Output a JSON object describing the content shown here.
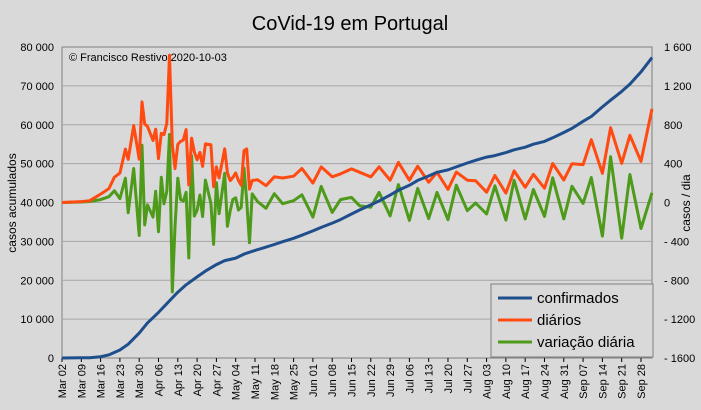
{
  "chart_data": {
    "type": "line",
    "title": "CoVid-19 em Portugal",
    "copyright": "© Francisco Restivo 2020-10-03",
    "ylabel_left": "casos  acumulados",
    "ylabel_right": "casos / dia",
    "ylim_left": [
      0,
      80000
    ],
    "ylim_right": [
      -1600,
      1600
    ],
    "yticks_left": [
      "0",
      "10 000",
      "20 000",
      "30 000",
      "40 000",
      "50 000",
      "60 000",
      "70 000",
      "80 000"
    ],
    "yticks_right": [
      "- 1600",
      "- 1200",
      "- 800",
      "- 400",
      "0",
      "400",
      "800",
      "1 200",
      "1 600"
    ],
    "x_start": "2020-03-02",
    "x_end": "2020-10-02",
    "xticks": [
      "Mar 02",
      "Mar 09",
      "Mar 16",
      "Mar 23",
      "Mar 30",
      "Apr 06",
      "Apr 13",
      "Apr 20",
      "Apr 27",
      "May 04",
      "May 11",
      "May 18",
      "May 25",
      "Jun 01",
      "Jun 08",
      "Jun 15",
      "Jun 22",
      "Jun 29",
      "Jul 06",
      "Jul 13",
      "Jul 20",
      "Jul 27",
      "Aug 03",
      "Aug 10",
      "Aug 17",
      "Aug 24",
      "Aug 31",
      "Sep 07",
      "Sep 14",
      "Sep 21",
      "Sep 28"
    ],
    "legend_position": "bottom-right",
    "grid": true,
    "colors": {
      "confirmados": "#1f4e8c",
      "diarios": "#ff4a12",
      "variacao": "#4e9a1a",
      "background": "#d9d9d9",
      "grid": "#a6a6a6"
    },
    "series": [
      {
        "name": "confirmados",
        "axis": "left",
        "points": [
          [
            "2020-03-02",
            2
          ],
          [
            "2020-03-09",
            39
          ],
          [
            "2020-03-12",
            78
          ],
          [
            "2020-03-16",
            331
          ],
          [
            "2020-03-19",
            785
          ],
          [
            "2020-03-23",
            2060
          ],
          [
            "2020-03-26",
            3544
          ],
          [
            "2020-03-30",
            6408
          ],
          [
            "2020-04-02",
            9034
          ],
          [
            "2020-04-06",
            11730
          ],
          [
            "2020-04-09",
            13956
          ],
          [
            "2020-04-11",
            15472
          ],
          [
            "2020-04-13",
            16934
          ],
          [
            "2020-04-16",
            18841
          ],
          [
            "2020-04-20",
            20863
          ],
          [
            "2020-04-23",
            22353
          ],
          [
            "2020-04-27",
            24027
          ],
          [
            "2020-04-30",
            25045
          ],
          [
            "2020-05-04",
            25702
          ],
          [
            "2020-05-07",
            26715
          ],
          [
            "2020-05-11",
            27679
          ],
          [
            "2020-05-14",
            28319
          ],
          [
            "2020-05-18",
            29209
          ],
          [
            "2020-05-21",
            29912
          ],
          [
            "2020-05-25",
            30788
          ],
          [
            "2020-05-28",
            31596
          ],
          [
            "2020-06-01",
            32700
          ],
          [
            "2020-06-04",
            33592
          ],
          [
            "2020-06-08",
            34693
          ],
          [
            "2020-06-11",
            35600
          ],
          [
            "2020-06-15",
            37036
          ],
          [
            "2020-06-18",
            38089
          ],
          [
            "2020-06-22",
            39392
          ],
          [
            "2020-06-25",
            40415
          ],
          [
            "2020-06-29",
            41912
          ],
          [
            "2020-07-02",
            43156
          ],
          [
            "2020-07-06",
            44416
          ],
          [
            "2020-07-09",
            45679
          ],
          [
            "2020-07-13",
            46818
          ],
          [
            "2020-07-16",
            47765
          ],
          [
            "2020-07-20",
            48390
          ],
          [
            "2020-07-23",
            49150
          ],
          [
            "2020-07-27",
            50164
          ],
          [
            "2020-07-30",
            50868
          ],
          [
            "2020-08-03",
            51681
          ],
          [
            "2020-08-06",
            52061
          ],
          [
            "2020-08-10",
            52825
          ],
          [
            "2020-08-13",
            53548
          ],
          [
            "2020-08-17",
            54234
          ],
          [
            "2020-08-20",
            54992
          ],
          [
            "2020-08-24",
            55720
          ],
          [
            "2020-08-27",
            56654
          ],
          [
            "2020-08-31",
            58012
          ],
          [
            "2020-09-03",
            59051
          ],
          [
            "2020-09-07",
            60895
          ],
          [
            "2020-09-10",
            62126
          ],
          [
            "2020-09-14",
            64596
          ],
          [
            "2020-09-17",
            66309
          ],
          [
            "2020-09-21",
            68577
          ],
          [
            "2020-09-24",
            70465
          ],
          [
            "2020-09-28",
            73604
          ],
          [
            "2020-10-02",
            77284
          ]
        ]
      },
      {
        "name": "diários",
        "axis": "right",
        "points": [
          [
            "2020-03-02",
            0
          ],
          [
            "2020-03-09",
            9
          ],
          [
            "2020-03-12",
            19
          ],
          [
            "2020-03-16",
            86
          ],
          [
            "2020-03-19",
            143
          ],
          [
            "2020-03-21",
            260
          ],
          [
            "2020-03-23",
            302
          ],
          [
            "2020-03-25",
            549
          ],
          [
            "2020-03-26",
            443
          ],
          [
            "2020-03-28",
            792
          ],
          [
            "2020-03-30",
            446
          ],
          [
            "2020-03-31",
            1035
          ],
          [
            "2020-04-01",
            808
          ],
          [
            "2020-04-02",
            783
          ],
          [
            "2020-04-04",
            638
          ],
          [
            "2020-04-05",
            754
          ],
          [
            "2020-04-06",
            452
          ],
          [
            "2020-04-07",
            712
          ],
          [
            "2020-04-08",
            699
          ],
          [
            "2020-04-09",
            815
          ],
          [
            "2020-04-10",
            1516
          ],
          [
            "2020-04-11",
            598
          ],
          [
            "2020-04-12",
            349
          ],
          [
            "2020-04-13",
            598
          ],
          [
            "2020-04-14",
            629
          ],
          [
            "2020-04-15",
            643
          ],
          [
            "2020-04-16",
            750
          ],
          [
            "2020-04-17",
            181
          ],
          [
            "2020-04-18",
            663
          ],
          [
            "2020-04-19",
            521
          ],
          [
            "2020-04-20",
            439
          ],
          [
            "2020-04-21",
            516
          ],
          [
            "2020-04-22",
            371
          ],
          [
            "2020-04-23",
            603
          ],
          [
            "2020-04-25",
            595
          ],
          [
            "2020-04-26",
            163
          ],
          [
            "2020-04-27",
            368
          ],
          [
            "2020-04-28",
            253
          ],
          [
            "2020-04-30",
            553
          ],
          [
            "2020-05-01",
            308
          ],
          [
            "2020-05-02",
            225
          ],
          [
            "2020-05-03",
            257
          ],
          [
            "2020-05-04",
            305
          ],
          [
            "2020-05-05",
            227
          ],
          [
            "2020-05-06",
            178
          ],
          [
            "2020-05-07",
            533
          ],
          [
            "2020-05-08",
            552
          ],
          [
            "2020-05-09",
            138
          ],
          [
            "2020-05-10",
            226
          ],
          [
            "2020-05-12",
            234
          ],
          [
            "2020-05-15",
            173
          ],
          [
            "2020-05-18",
            264
          ],
          [
            "2020-05-21",
            252
          ],
          [
            "2020-05-25",
            271
          ],
          [
            "2020-05-28",
            350
          ],
          [
            "2020-06-01",
            200
          ],
          [
            "2020-06-04",
            366
          ],
          [
            "2020-06-08",
            264
          ],
          [
            "2020-06-11",
            294
          ],
          [
            "2020-06-15",
            346
          ],
          [
            "2020-06-18",
            311
          ],
          [
            "2020-06-22",
            263
          ],
          [
            "2020-06-25",
            367
          ],
          [
            "2020-06-29",
            229
          ],
          [
            "2020-07-02",
            413
          ],
          [
            "2020-07-06",
            229
          ],
          [
            "2020-07-09",
            374
          ],
          [
            "2020-07-13",
            208
          ],
          [
            "2020-07-16",
            312
          ],
          [
            "2020-07-20",
            135
          ],
          [
            "2020-07-23",
            313
          ],
          [
            "2020-07-27",
            229
          ],
          [
            "2020-07-30",
            224
          ],
          [
            "2020-08-03",
            106
          ],
          [
            "2020-08-06",
            278
          ],
          [
            "2020-08-10",
            97
          ],
          [
            "2020-08-13",
            325
          ],
          [
            "2020-08-17",
            156
          ],
          [
            "2020-08-20",
            290
          ],
          [
            "2020-08-24",
            147
          ],
          [
            "2020-08-27",
            401
          ],
          [
            "2020-08-31",
            232
          ],
          [
            "2020-09-03",
            399
          ],
          [
            "2020-09-07",
            390
          ],
          [
            "2020-09-10",
            646
          ],
          [
            "2020-09-14",
            300
          ],
          [
            "2020-09-17",
            770
          ],
          [
            "2020-09-21",
            403
          ],
          [
            "2020-09-24",
            691
          ],
          [
            "2020-09-28",
            423
          ],
          [
            "2020-10-02",
            963
          ]
        ]
      },
      {
        "name": "variação diária",
        "axis": "right",
        "points": [
          [
            "2020-03-02",
            0
          ],
          [
            "2020-03-09",
            5
          ],
          [
            "2020-03-12",
            10
          ],
          [
            "2020-03-16",
            30
          ],
          [
            "2020-03-19",
            60
          ],
          [
            "2020-03-21",
            120
          ],
          [
            "2020-03-23",
            40
          ],
          [
            "2020-03-25",
            250
          ],
          [
            "2020-03-26",
            -105
          ],
          [
            "2020-03-28",
            350
          ],
          [
            "2020-03-30",
            -340
          ],
          [
            "2020-03-31",
            590
          ],
          [
            "2020-04-01",
            -230
          ],
          [
            "2020-04-02",
            -25
          ],
          [
            "2020-04-04",
            -150
          ],
          [
            "2020-04-05",
            115
          ],
          [
            "2020-04-06",
            -300
          ],
          [
            "2020-04-07",
            260
          ],
          [
            "2020-04-08",
            -13
          ],
          [
            "2020-04-09",
            115
          ],
          [
            "2020-04-10",
            700
          ],
          [
            "2020-04-11",
            -920
          ],
          [
            "2020-04-12",
            -250
          ],
          [
            "2020-04-13",
            250
          ],
          [
            "2020-04-14",
            30
          ],
          [
            "2020-04-15",
            14
          ],
          [
            "2020-04-16",
            105
          ],
          [
            "2020-04-17",
            -570
          ],
          [
            "2020-04-18",
            480
          ],
          [
            "2020-04-19",
            -140
          ],
          [
            "2020-04-20",
            -80
          ],
          [
            "2020-04-21",
            77
          ],
          [
            "2020-04-22",
            -145
          ],
          [
            "2020-04-23",
            230
          ],
          [
            "2020-04-25",
            -8
          ],
          [
            "2020-04-26",
            -430
          ],
          [
            "2020-04-27",
            205
          ],
          [
            "2020-04-28",
            -115
          ],
          [
            "2020-04-30",
            300
          ],
          [
            "2020-05-01",
            -245
          ],
          [
            "2020-05-02",
            -85
          ],
          [
            "2020-05-03",
            32
          ],
          [
            "2020-05-04",
            48
          ],
          [
            "2020-05-05",
            -78
          ],
          [
            "2020-05-06",
            -50
          ],
          [
            "2020-05-07",
            355
          ],
          [
            "2020-05-08",
            20
          ],
          [
            "2020-05-09",
            -415
          ],
          [
            "2020-05-10",
            88
          ],
          [
            "2020-05-12",
            8
          ],
          [
            "2020-05-15",
            -60
          ],
          [
            "2020-05-18",
            91
          ],
          [
            "2020-05-21",
            -12
          ],
          [
            "2020-05-25",
            19
          ],
          [
            "2020-05-28",
            79
          ],
          [
            "2020-06-01",
            -150
          ],
          [
            "2020-06-04",
            166
          ],
          [
            "2020-06-08",
            -102
          ],
          [
            "2020-06-11",
            30
          ],
          [
            "2020-06-15",
            52
          ],
          [
            "2020-06-18",
            -35
          ],
          [
            "2020-06-22",
            -48
          ],
          [
            "2020-06-25",
            104
          ],
          [
            "2020-06-29",
            -138
          ],
          [
            "2020-07-02",
            184
          ],
          [
            "2020-07-06",
            -184
          ],
          [
            "2020-07-09",
            145
          ],
          [
            "2020-07-13",
            -166
          ],
          [
            "2020-07-16",
            104
          ],
          [
            "2020-07-20",
            -177
          ],
          [
            "2020-07-23",
            178
          ],
          [
            "2020-07-27",
            -84
          ],
          [
            "2020-07-30",
            -5
          ],
          [
            "2020-08-03",
            -118
          ],
          [
            "2020-08-06",
            172
          ],
          [
            "2020-08-10",
            -181
          ],
          [
            "2020-08-13",
            228
          ],
          [
            "2020-08-17",
            -169
          ],
          [
            "2020-08-20",
            134
          ],
          [
            "2020-08-24",
            -143
          ],
          [
            "2020-08-27",
            254
          ],
          [
            "2020-08-31",
            -169
          ],
          [
            "2020-09-03",
            167
          ],
          [
            "2020-09-07",
            -9
          ],
          [
            "2020-09-10",
            256
          ],
          [
            "2020-09-14",
            -346
          ],
          [
            "2020-09-17",
            470
          ],
          [
            "2020-09-21",
            -367
          ],
          [
            "2020-09-24",
            288
          ],
          [
            "2020-09-28",
            -268
          ],
          [
            "2020-10-02",
            100
          ]
        ]
      }
    ]
  }
}
